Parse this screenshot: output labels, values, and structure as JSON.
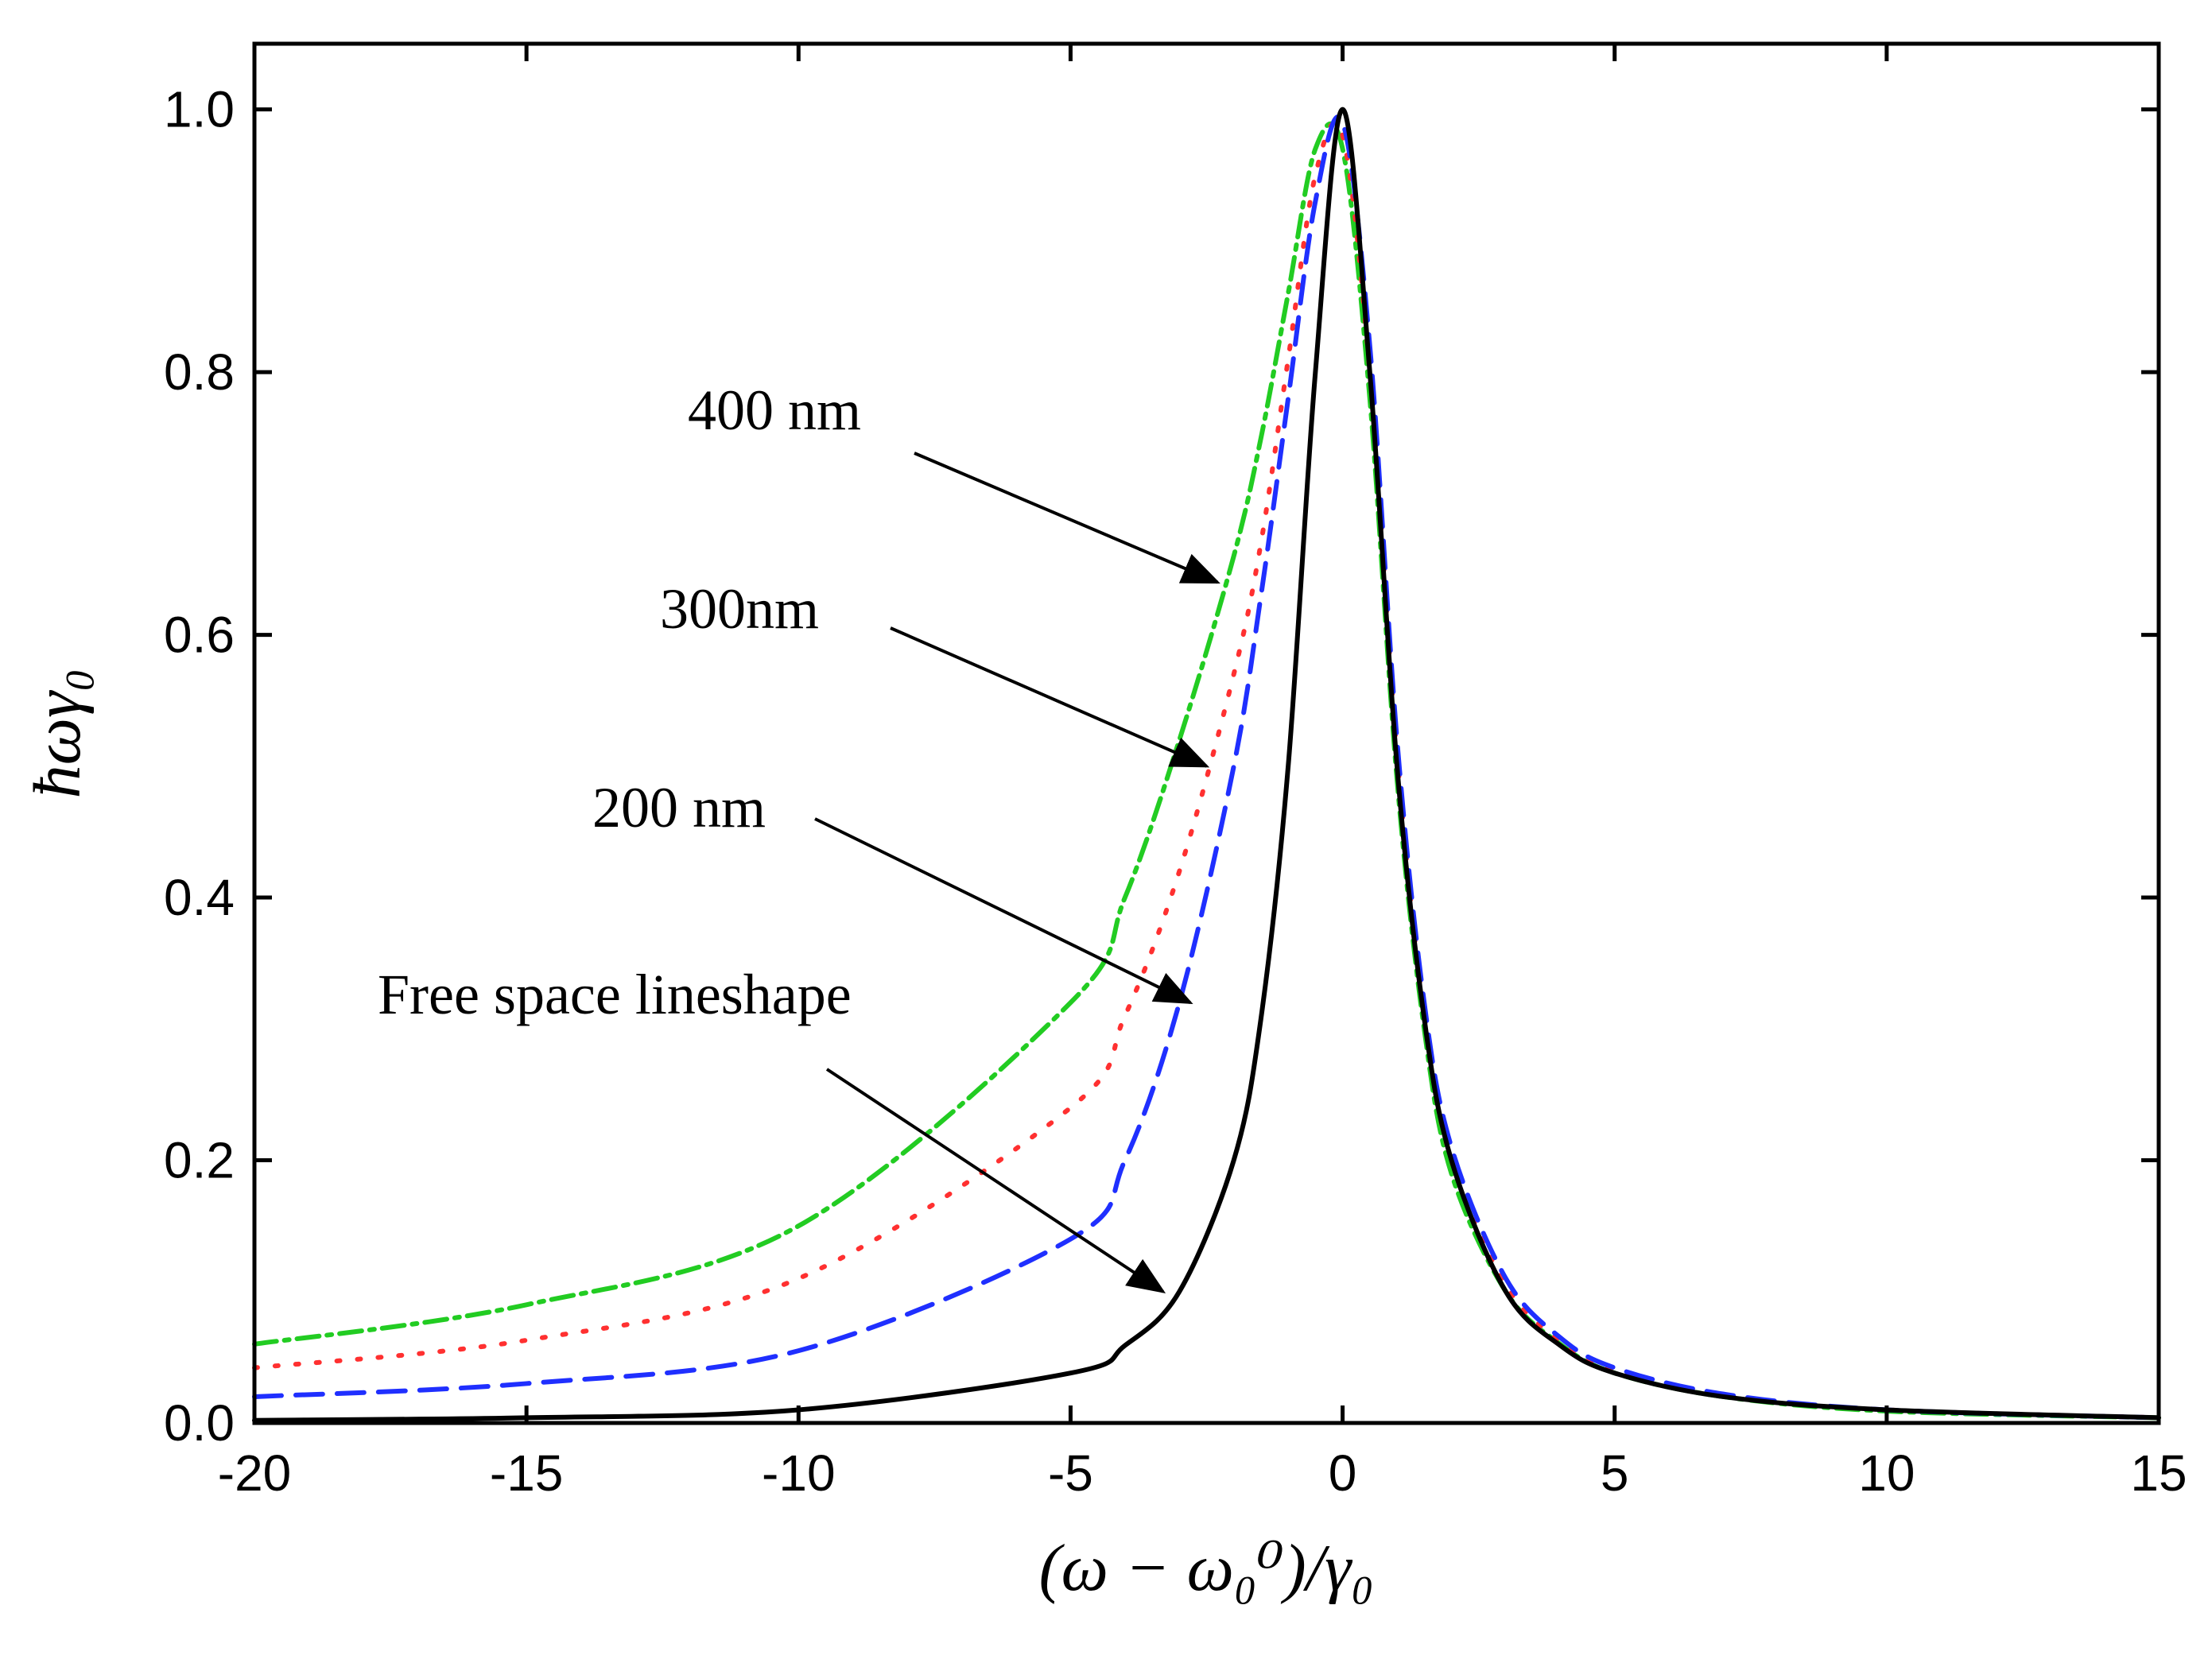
{
  "chart_data": {
    "type": "line",
    "xlabel": "(ω − ω₀⁰)/γ₀",
    "ylabel": "ħωγ₀",
    "xlim": [
      -20,
      15
    ],
    "ylim": [
      0,
      1.05
    ],
    "x_ticks": [
      -20,
      -15,
      -10,
      -5,
      0,
      5,
      10,
      15
    ],
    "x_tick_labels": [
      "-20",
      "-15",
      "-10",
      "-5",
      "0",
      "5",
      "10",
      "15"
    ],
    "y_ticks": [
      0.0,
      0.2,
      0.4,
      0.6,
      0.8,
      1.0
    ],
    "y_tick_labels": [
      "0.0",
      "0.2",
      "0.4",
      "0.6",
      "0.8",
      "1.0"
    ],
    "grid": false,
    "series": [
      {
        "name": "Free space lineshape",
        "color": "#000000",
        "style": "solid",
        "x": [
          -20,
          -15,
          -10,
          -5,
          -4,
          -3,
          -2,
          -1.5,
          -1,
          -0.5,
          0,
          0.5,
          1,
          1.5,
          2,
          3,
          4,
          5,
          7,
          10,
          15
        ],
        "y": [
          0.002,
          0.004,
          0.01,
          0.038,
          0.059,
          0.1,
          0.2,
          0.308,
          0.5,
          0.8,
          1.0,
          0.8,
          0.5,
          0.308,
          0.2,
          0.1,
          0.059,
          0.038,
          0.02,
          0.01,
          0.004
        ]
      },
      {
        "name": "200 nm",
        "color": "#1f2fff",
        "style": "dashed",
        "x": [
          -20,
          -15,
          -10,
          -5,
          -4,
          -3,
          -2,
          -1.5,
          -1,
          -0.5,
          0,
          0.5,
          1,
          1.5,
          2,
          3,
          4,
          5,
          7,
          10,
          15
        ],
        "y": [
          0.02,
          0.03,
          0.055,
          0.14,
          0.2,
          0.32,
          0.5,
          0.63,
          0.78,
          0.93,
          0.99,
          0.82,
          0.52,
          0.32,
          0.21,
          0.11,
          0.065,
          0.042,
          0.022,
          0.01,
          0.004
        ]
      },
      {
        "name": "300nm",
        "color": "#ff3030",
        "style": "dotted",
        "x": [
          -20,
          -15,
          -10,
          -5,
          -4,
          -3,
          -2,
          -1.5,
          -1,
          -0.5,
          0,
          0.5,
          1,
          1.5,
          2,
          3,
          4,
          5,
          7,
          10,
          15
        ],
        "y": [
          0.042,
          0.063,
          0.11,
          0.24,
          0.31,
          0.42,
          0.57,
          0.67,
          0.81,
          0.95,
          0.98,
          0.8,
          0.51,
          0.31,
          0.2,
          0.105,
          0.062,
          0.04,
          0.021,
          0.01,
          0.004
        ]
      },
      {
        "name": "400 nm",
        "color": "#22cc22",
        "style": "dash-dot",
        "x": [
          -20,
          -15,
          -10,
          -5,
          -4,
          -3,
          -2,
          -1.5,
          -1,
          -0.5,
          0,
          0.5,
          1,
          1.5,
          2,
          3,
          4,
          5,
          7,
          10,
          15
        ],
        "y": [
          0.06,
          0.09,
          0.15,
          0.32,
          0.4,
          0.52,
          0.66,
          0.75,
          0.86,
          0.97,
          0.97,
          0.78,
          0.49,
          0.3,
          0.19,
          0.1,
          0.06,
          0.038,
          0.02,
          0.009,
          0.004
        ]
      }
    ],
    "annotations": [
      {
        "text": "400 nm",
        "points_to": {
          "x": -2.3,
          "y": 0.64
        }
      },
      {
        "text": "300nm",
        "points_to": {
          "x": -2.5,
          "y": 0.5
        }
      },
      {
        "text": "200 nm",
        "points_to": {
          "x": -2.8,
          "y": 0.32
        }
      },
      {
        "text": "Free space lineshape",
        "points_to": {
          "x": -3.3,
          "y": 0.1
        }
      }
    ]
  }
}
